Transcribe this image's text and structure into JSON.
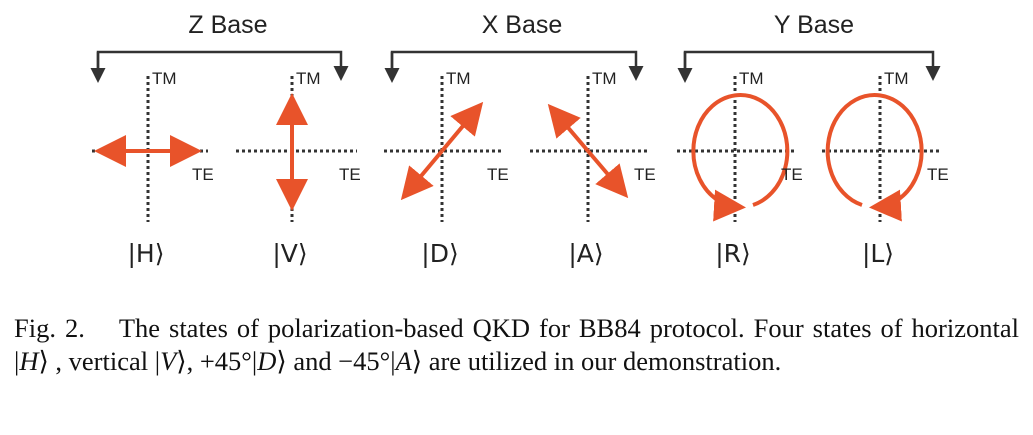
{
  "figure": {
    "bases": [
      {
        "label": "Z Base",
        "states": [
          {
            "ket": "|H⟩",
            "te": "TE",
            "tm": "TM"
          },
          {
            "ket": "|V⟩",
            "te": "TE",
            "tm": "TM"
          }
        ]
      },
      {
        "label": "X Base",
        "states": [
          {
            "ket": "|D⟩",
            "te": "TE",
            "tm": "TM"
          },
          {
            "ket": "|A⟩",
            "te": "TE",
            "tm": "TM"
          }
        ]
      },
      {
        "label": "Y Base",
        "states": [
          {
            "ket": "|R⟩",
            "te": "TE",
            "tm": "TM"
          },
          {
            "ket": "|L⟩",
            "te": "TE",
            "tm": "TM"
          }
        ]
      }
    ],
    "arrow_color": "#e8532a",
    "axis_color": "#333333"
  },
  "caption": {
    "label": "Fig. 2.",
    "sentence1": "The states of polarization-based QKD for BB84 protocol. Four states of horizontal ",
    "h_sym": "H",
    "seg2": " , vertical ",
    "v_sym": "V",
    "seg3": ", +45°",
    "d_sym": "D",
    "seg4": " and −45°",
    "a_sym": "A",
    "seg5": " are utilized in our demonstration."
  }
}
